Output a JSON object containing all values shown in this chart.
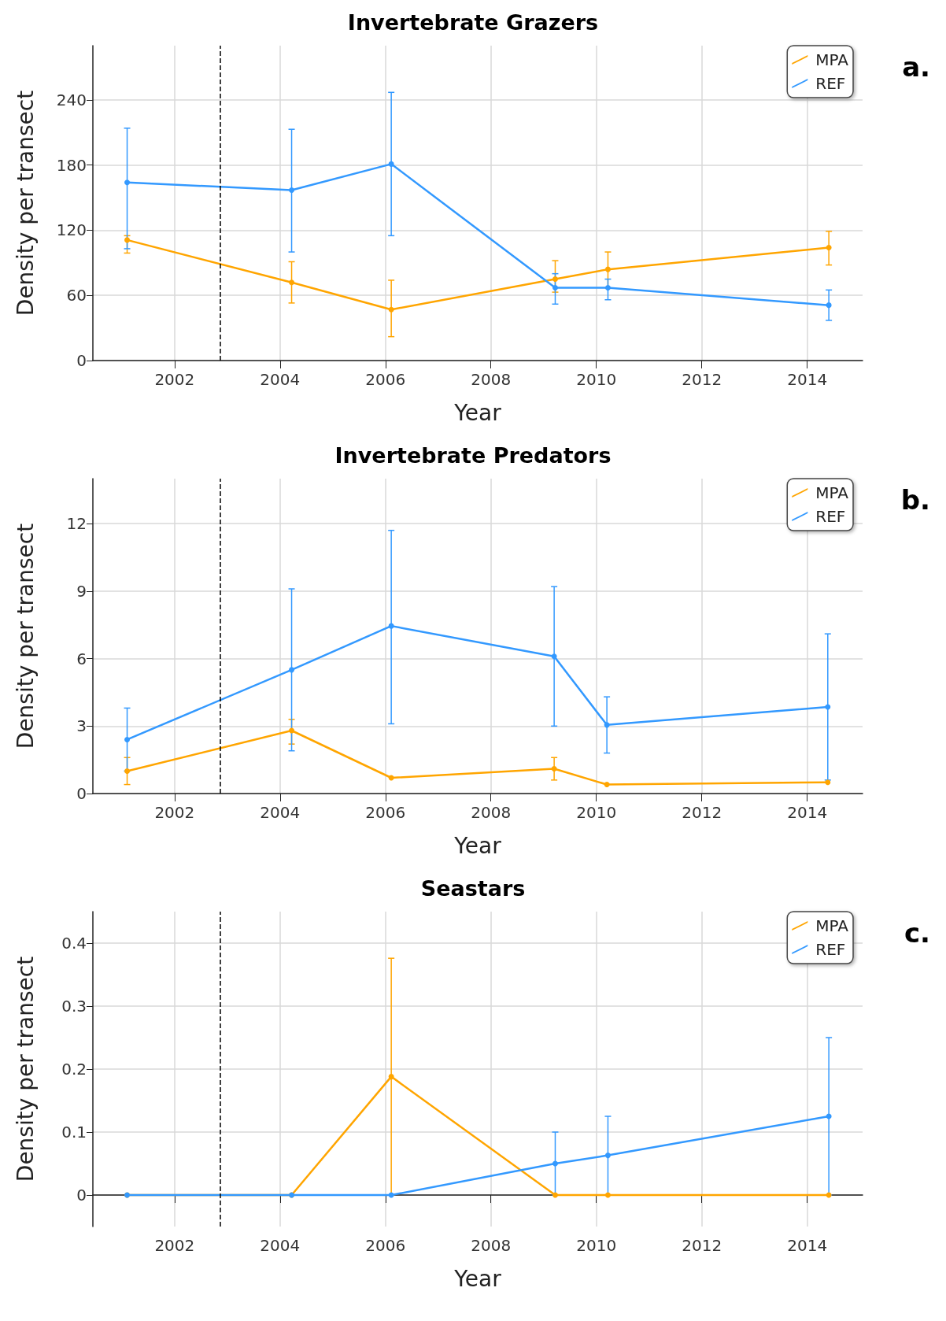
{
  "chart_data": [
    {
      "type": "line",
      "title": "Invertebrate Grazers",
      "xlabel": "Year",
      "ylabel": "Density per transect",
      "annotations": [
        "a."
      ],
      "x": [
        2001.1,
        2004.22,
        2006.11,
        2009.22,
        2010.22,
        2014.41
      ],
      "series": [
        {
          "name": "MPA",
          "color": "#ffa500",
          "values": [
            111,
            72,
            47,
            75,
            84,
            104
          ],
          "errors": [
            [
              99,
              115
            ],
            [
              53,
              91
            ],
            [
              22,
              74
            ],
            [
              63,
              92
            ],
            [
              67,
              100
            ],
            [
              88,
              119
            ]
          ]
        },
        {
          "name": "REF",
          "color": "#3399ff",
          "values": [
            164,
            157,
            181,
            67,
            67,
            51
          ],
          "errors": [
            [
              103,
              214
            ],
            [
              100,
              213
            ],
            [
              115,
              247
            ],
            [
              52,
              80
            ],
            [
              56,
              75
            ],
            [
              37,
              65
            ]
          ]
        }
      ],
      "xlim": [
        2000.45,
        2015.05
      ],
      "xticks": [
        2002,
        2004,
        2006,
        2008,
        2010,
        2012,
        2014
      ],
      "ylim": [
        0,
        290
      ],
      "yticks": [
        0,
        60,
        120,
        180,
        240
      ],
      "ref_lines": [
        {
          "axis": "x",
          "value": 2002.87,
          "color": "#000000",
          "line_style": "dashed"
        }
      ],
      "grid": true,
      "legend": "top right",
      "marker": "circle",
      "line_style": "solid"
    },
    {
      "type": "line",
      "title": "Invertebrate Predators",
      "xlabel": "Year",
      "ylabel": "Density per transect",
      "annotations": [
        "b."
      ],
      "x": [
        2001.1,
        2004.22,
        2006.11,
        2009.2,
        2010.2,
        2014.39
      ],
      "series": [
        {
          "name": "MPA",
          "color": "#ffa500",
          "values": [
            1.0,
            2.8,
            0.7,
            1.1,
            0.4,
            0.5
          ],
          "errors": [
            [
              0.4,
              1.6
            ],
            [
              2.2,
              3.3
            ],
            null,
            [
              0.6,
              1.6
            ],
            null,
            null
          ]
        },
        {
          "name": "REF",
          "color": "#3399ff",
          "values": [
            2.4,
            5.5,
            7.45,
            6.1,
            3.05,
            3.85
          ],
          "errors": [
            [
              1.0,
              3.8
            ],
            [
              1.9,
              9.1
            ],
            [
              3.1,
              11.7
            ],
            [
              3.0,
              9.2
            ],
            [
              1.8,
              4.3
            ],
            [
              0.6,
              7.1
            ]
          ]
        }
      ],
      "xlim": [
        2000.45,
        2015.05
      ],
      "xticks": [
        2002,
        2004,
        2006,
        2008,
        2010,
        2012,
        2014
      ],
      "ylim": [
        0,
        14
      ],
      "yticks": [
        0,
        3,
        6,
        9,
        12
      ],
      "ref_lines": [
        {
          "axis": "x",
          "value": 2002.87,
          "color": "#000000",
          "line_style": "dashed"
        }
      ],
      "grid": true,
      "legend": "top right",
      "marker": "circle",
      "line_style": "solid"
    },
    {
      "type": "line",
      "title": "Seastars",
      "xlabel": "Year",
      "ylabel": "Density per transect",
      "annotations": [
        "c."
      ],
      "x": [
        2001.1,
        2004.22,
        2006.11,
        2009.22,
        2010.22,
        2014.41
      ],
      "series": [
        {
          "name": "MPA",
          "color": "#ffa500",
          "values": [
            0,
            0,
            0.188,
            0,
            0,
            0
          ],
          "errors": [
            null,
            null,
            [
              0,
              0.376
            ],
            null,
            null,
            null
          ]
        },
        {
          "name": "REF",
          "color": "#3399ff",
          "values": [
            0,
            0,
            0,
            0.05,
            0.063,
            0.125
          ],
          "errors": [
            null,
            null,
            null,
            [
              0,
              0.1
            ],
            [
              0,
              0.125
            ],
            [
              0,
              0.25
            ]
          ]
        }
      ],
      "xlim": [
        2000.45,
        2015.05
      ],
      "xticks": [
        2002,
        2004,
        2006,
        2008,
        2010,
        2012,
        2014
      ],
      "ylim": [
        -0.05,
        0.45
      ],
      "yticks": [
        0,
        0.1,
        0.2,
        0.3,
        0.4
      ],
      "ref_lines": [
        {
          "axis": "x",
          "value": 2002.87,
          "color": "#000000",
          "line_style": "dashed"
        }
      ],
      "grid": true,
      "legend": "top right",
      "marker": "circle",
      "line_style": "solid"
    }
  ]
}
